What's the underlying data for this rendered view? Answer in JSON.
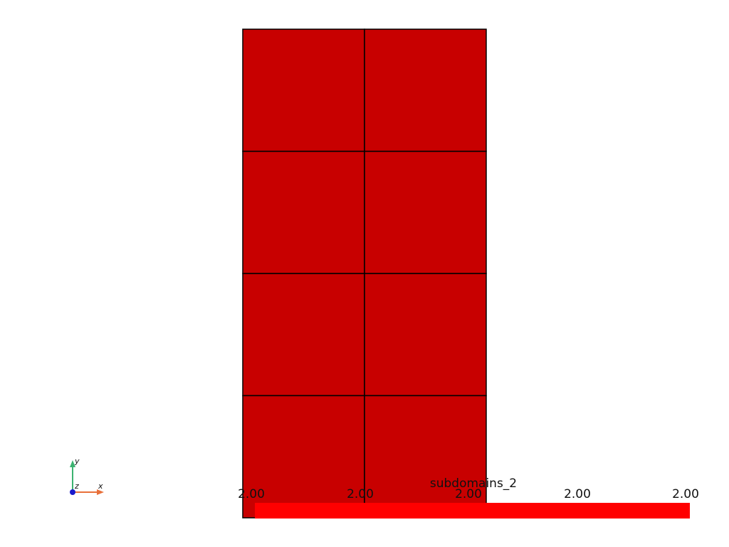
{
  "scene": {
    "mesh": {
      "fill_color": "#c80000",
      "edge_color": "#000000",
      "columns": 2,
      "rows": 4
    },
    "scalar_bar": {
      "title": "subdomains_2",
      "tick_labels": [
        "2.00",
        "2.00",
        "2.00",
        "2.00",
        "2.00"
      ],
      "bar_color": "#ff0000"
    },
    "orientation_axes": {
      "x_label": "x",
      "y_label": "y",
      "z_label": "z",
      "x_color": "#e8703a",
      "y_color": "#3cb371",
      "z_color": "#1a1acc"
    }
  }
}
